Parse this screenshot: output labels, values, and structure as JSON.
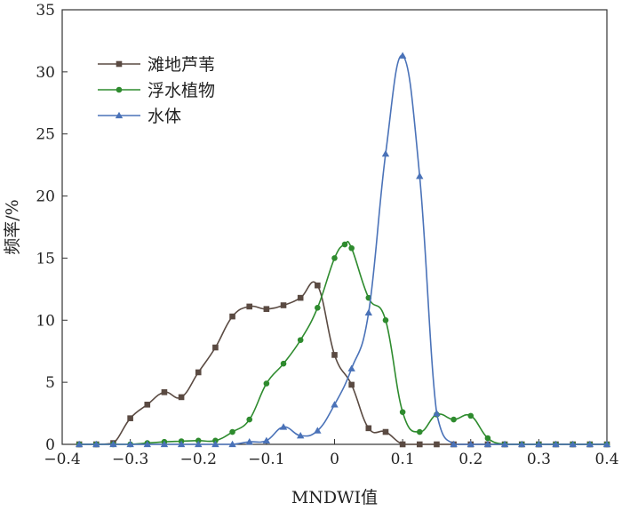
{
  "chart_data": {
    "type": "line",
    "xlabel": "MNDWI值",
    "ylabel": "频率/%",
    "xlim": [
      -0.4,
      0.4
    ],
    "ylim": [
      0,
      35
    ],
    "x_ticks": [
      -0.4,
      -0.3,
      -0.2,
      -0.1,
      0,
      0.1,
      0.2,
      0.3,
      0.4
    ],
    "x_tick_labels": [
      "−0.4",
      "−0.3",
      "−0.2",
      "−0.1",
      "0",
      "0.1",
      "0.2",
      "0.3",
      "0.4"
    ],
    "y_ticks": [
      0,
      5,
      10,
      15,
      20,
      25,
      30,
      35
    ],
    "y_tick_labels": [
      "0",
      "5",
      "10",
      "15",
      "20",
      "25",
      "30",
      "35"
    ],
    "grid": false,
    "legend_position": "top-left",
    "series": [
      {
        "name": "滩地芦苇",
        "color": "#5a4a42",
        "marker": "square",
        "x": [
          -0.375,
          -0.35,
          -0.325,
          -0.3,
          -0.275,
          -0.25,
          -0.225,
          -0.2,
          -0.175,
          -0.15,
          -0.125,
          -0.1,
          -0.075,
          -0.05,
          -0.025,
          0,
          0.025,
          0.05,
          0.075,
          0.1,
          0.125,
          0.15,
          0.175,
          0.2,
          0.225,
          0.25,
          0.275,
          0.3,
          0.325,
          0.35,
          0.375,
          0.4
        ],
        "values": [
          0,
          0,
          0.1,
          2.1,
          3.2,
          4.2,
          3.8,
          5.8,
          7.8,
          10.3,
          11.1,
          10.9,
          11.2,
          11.8,
          12.8,
          7.2,
          4.8,
          1.3,
          1.0,
          0,
          0,
          0,
          0,
          0,
          0,
          0,
          0,
          0,
          0,
          0,
          0,
          0
        ]
      },
      {
        "name": "浮水植物",
        "color": "#2e8b2e",
        "marker": "circle",
        "x": [
          -0.375,
          -0.35,
          -0.325,
          -0.3,
          -0.275,
          -0.25,
          -0.225,
          -0.2,
          -0.175,
          -0.15,
          -0.125,
          -0.1,
          -0.075,
          -0.05,
          -0.025,
          0,
          0.015,
          0.025,
          0.05,
          0.075,
          0.1,
          0.125,
          0.15,
          0.175,
          0.2,
          0.225,
          0.25,
          0.275,
          0.3,
          0.325,
          0.35,
          0.375,
          0.4
        ],
        "values": [
          0,
          0,
          0,
          0,
          0.1,
          0.2,
          0.25,
          0.3,
          0.3,
          1.0,
          2.0,
          4.9,
          6.5,
          8.4,
          11.0,
          15.0,
          16.1,
          15.8,
          11.8,
          10.0,
          2.6,
          1.0,
          2.4,
          2.0,
          2.3,
          0.5,
          0,
          0,
          0,
          0,
          0,
          0,
          0
        ]
      },
      {
        "name": "水体",
        "color": "#4a72b8",
        "marker": "triangle",
        "x": [
          -0.375,
          -0.35,
          -0.325,
          -0.3,
          -0.275,
          -0.25,
          -0.225,
          -0.2,
          -0.175,
          -0.15,
          -0.125,
          -0.1,
          -0.075,
          -0.05,
          -0.025,
          0,
          0.025,
          0.05,
          0.075,
          0.1,
          0.125,
          0.15,
          0.175,
          0.2,
          0.225,
          0.25,
          0.275,
          0.3,
          0.325,
          0.35,
          0.375,
          0.4
        ],
        "values": [
          0,
          0,
          0,
          0,
          0,
          0,
          0,
          0,
          0,
          0,
          0.2,
          0.3,
          1.4,
          0.7,
          1.1,
          3.2,
          6.1,
          10.6,
          23.4,
          31.3,
          21.6,
          2.5,
          0,
          0,
          0,
          0,
          0,
          0,
          0,
          0,
          0,
          0
        ]
      }
    ]
  }
}
